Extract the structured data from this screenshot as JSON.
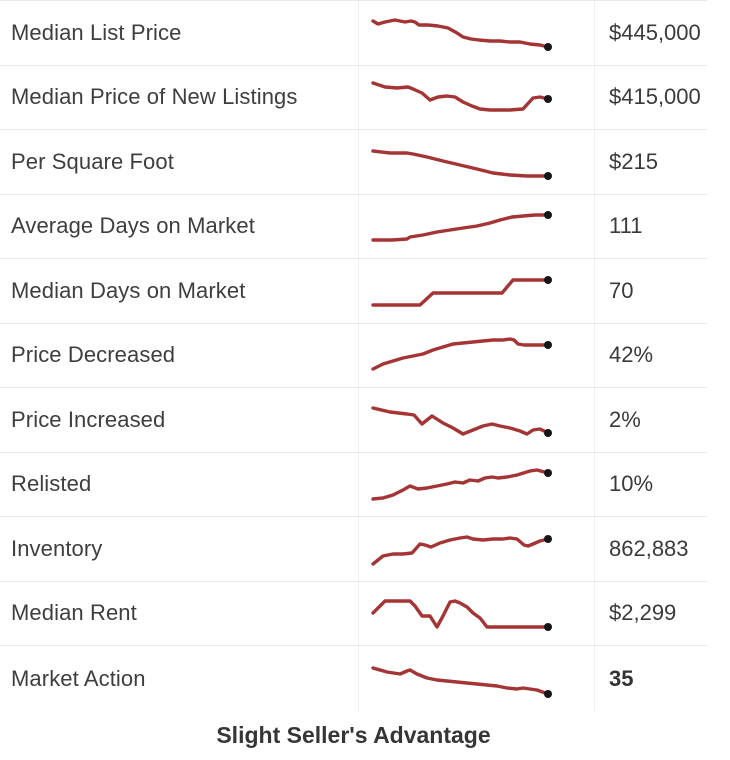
{
  "widget": {
    "accent_color": "#a53434",
    "dot_color": "#161616",
    "rows": [
      {
        "label": "Median List Price",
        "value": "$445,000",
        "emphasis": false,
        "points": [
          [
            14,
            20
          ],
          [
            19,
            23
          ],
          [
            26,
            21
          ],
          [
            36,
            19
          ],
          [
            46,
            21
          ],
          [
            52,
            20
          ],
          [
            56,
            21
          ],
          [
            60,
            24
          ],
          [
            69,
            24
          ],
          [
            79,
            25
          ],
          [
            89,
            27
          ],
          [
            98,
            32
          ],
          [
            104,
            36
          ],
          [
            112,
            38
          ],
          [
            120,
            39
          ],
          [
            131,
            40
          ],
          [
            141,
            40
          ],
          [
            151,
            41
          ],
          [
            161,
            41
          ],
          [
            171,
            43
          ],
          [
            181,
            44
          ],
          [
            189,
            46
          ]
        ]
      },
      {
        "label": "Median Price of New Listings",
        "value": "$415,000",
        "emphasis": false,
        "points": [
          [
            14,
            18
          ],
          [
            26,
            22
          ],
          [
            38,
            23
          ],
          [
            49,
            22
          ],
          [
            54,
            24
          ],
          [
            63,
            28
          ],
          [
            71,
            35
          ],
          [
            79,
            32
          ],
          [
            88,
            31
          ],
          [
            96,
            32
          ],
          [
            104,
            37
          ],
          [
            113,
            41
          ],
          [
            121,
            44
          ],
          [
            131,
            45
          ],
          [
            151,
            45
          ],
          [
            164,
            44
          ],
          [
            174,
            33
          ],
          [
            181,
            32
          ],
          [
            189,
            34
          ]
        ]
      },
      {
        "label": "Per Square Foot",
        "value": "$215",
        "emphasis": false,
        "points": [
          [
            14,
            21
          ],
          [
            31,
            23
          ],
          [
            48,
            23
          ],
          [
            54,
            24
          ],
          [
            68,
            27
          ],
          [
            84,
            31
          ],
          [
            101,
            35
          ],
          [
            118,
            39
          ],
          [
            134,
            43
          ],
          [
            151,
            45
          ],
          [
            168,
            46
          ],
          [
            178,
            46
          ],
          [
            189,
            46
          ]
        ]
      },
      {
        "label": "Average Days on Market",
        "value": "111",
        "emphasis": false,
        "points": [
          [
            14,
            46
          ],
          [
            33,
            46
          ],
          [
            48,
            45
          ],
          [
            51,
            43
          ],
          [
            64,
            41
          ],
          [
            78,
            38
          ],
          [
            91,
            36
          ],
          [
            104,
            34
          ],
          [
            118,
            32
          ],
          [
            131,
            29
          ],
          [
            141,
            26
          ],
          [
            153,
            23
          ],
          [
            164,
            22
          ],
          [
            176,
            21
          ],
          [
            189,
            21
          ]
        ]
      },
      {
        "label": "Median Days on Market",
        "value": "70",
        "emphasis": false,
        "points": [
          [
            14,
            46
          ],
          [
            61,
            46
          ],
          [
            74,
            34
          ],
          [
            143,
            34
          ],
          [
            154,
            21
          ],
          [
            189,
            21
          ]
        ]
      },
      {
        "label": "Price Decreased",
        "value": "42%",
        "emphasis": false,
        "points": [
          [
            14,
            46
          ],
          [
            24,
            41
          ],
          [
            34,
            38
          ],
          [
            44,
            35
          ],
          [
            54,
            33
          ],
          [
            64,
            31
          ],
          [
            74,
            27
          ],
          [
            84,
            24
          ],
          [
            94,
            21
          ],
          [
            104,
            20
          ],
          [
            114,
            19
          ],
          [
            124,
            18
          ],
          [
            134,
            17
          ],
          [
            144,
            17
          ],
          [
            151,
            16
          ],
          [
            155,
            17
          ],
          [
            159,
            21
          ],
          [
            165,
            22
          ],
          [
            189,
            22
          ]
        ]
      },
      {
        "label": "Price Increased",
        "value": "2%",
        "emphasis": false,
        "points": [
          [
            14,
            20
          ],
          [
            31,
            24
          ],
          [
            48,
            26
          ],
          [
            55,
            27
          ],
          [
            63,
            36
          ],
          [
            73,
            28
          ],
          [
            84,
            35
          ],
          [
            94,
            40
          ],
          [
            104,
            46
          ],
          [
            114,
            42
          ],
          [
            124,
            38
          ],
          [
            133,
            36
          ],
          [
            141,
            38
          ],
          [
            151,
            40
          ],
          [
            161,
            43
          ],
          [
            168,
            46
          ],
          [
            174,
            42
          ],
          [
            181,
            41
          ],
          [
            189,
            45
          ]
        ]
      },
      {
        "label": "Relisted",
        "value": "10%",
        "emphasis": false,
        "points": [
          [
            14,
            47
          ],
          [
            24,
            46
          ],
          [
            34,
            43
          ],
          [
            44,
            38
          ],
          [
            51,
            34
          ],
          [
            59,
            37
          ],
          [
            68,
            36
          ],
          [
            78,
            34
          ],
          [
            88,
            32
          ],
          [
            96,
            30
          ],
          [
            104,
            31
          ],
          [
            111,
            28
          ],
          [
            119,
            29
          ],
          [
            126,
            26
          ],
          [
            133,
            25
          ],
          [
            139,
            26
          ],
          [
            148,
            25
          ],
          [
            158,
            23
          ],
          [
            171,
            19
          ],
          [
            178,
            18
          ],
          [
            189,
            21
          ]
        ]
      },
      {
        "label": "Inventory",
        "value": "862,883",
        "emphasis": false,
        "points": [
          [
            14,
            47
          ],
          [
            24,
            39
          ],
          [
            34,
            37
          ],
          [
            44,
            37
          ],
          [
            53,
            36
          ],
          [
            61,
            27
          ],
          [
            66,
            28
          ],
          [
            72,
            30
          ],
          [
            81,
            26
          ],
          [
            91,
            23
          ],
          [
            101,
            21
          ],
          [
            108,
            20
          ],
          [
            114,
            22
          ],
          [
            124,
            23
          ],
          [
            134,
            22
          ],
          [
            144,
            22
          ],
          [
            151,
            21
          ],
          [
            158,
            22
          ],
          [
            165,
            28
          ],
          [
            169,
            29
          ],
          [
            174,
            27
          ],
          [
            181,
            24
          ],
          [
            189,
            22
          ]
        ]
      },
      {
        "label": "Median Rent",
        "value": "$2,299",
        "emphasis": false,
        "points": [
          [
            14,
            32
          ],
          [
            21,
            25
          ],
          [
            26,
            20
          ],
          [
            31,
            20
          ],
          [
            51,
            20
          ],
          [
            56,
            25
          ],
          [
            63,
            35
          ],
          [
            71,
            35
          ],
          [
            78,
            46
          ],
          [
            84,
            35
          ],
          [
            91,
            21
          ],
          [
            96,
            20
          ],
          [
            101,
            22
          ],
          [
            108,
            26
          ],
          [
            114,
            32
          ],
          [
            121,
            37
          ],
          [
            128,
            46
          ],
          [
            134,
            46
          ],
          [
            181,
            46
          ],
          [
            189,
            46
          ]
        ]
      },
      {
        "label": "Market Action",
        "value": "35",
        "emphasis": true,
        "points": [
          [
            14,
            21
          ],
          [
            28,
            25
          ],
          [
            41,
            27
          ],
          [
            48,
            24
          ],
          [
            51,
            23
          ],
          [
            58,
            27
          ],
          [
            68,
            31
          ],
          [
            78,
            33
          ],
          [
            88,
            34
          ],
          [
            98,
            35
          ],
          [
            108,
            36
          ],
          [
            118,
            37
          ],
          [
            128,
            38
          ],
          [
            138,
            39
          ],
          [
            148,
            41
          ],
          [
            158,
            42
          ],
          [
            164,
            41
          ],
          [
            171,
            42
          ],
          [
            178,
            43
          ],
          [
            189,
            47
          ]
        ]
      }
    ],
    "footer": {
      "text": "Slight Seller's Advantage"
    }
  }
}
